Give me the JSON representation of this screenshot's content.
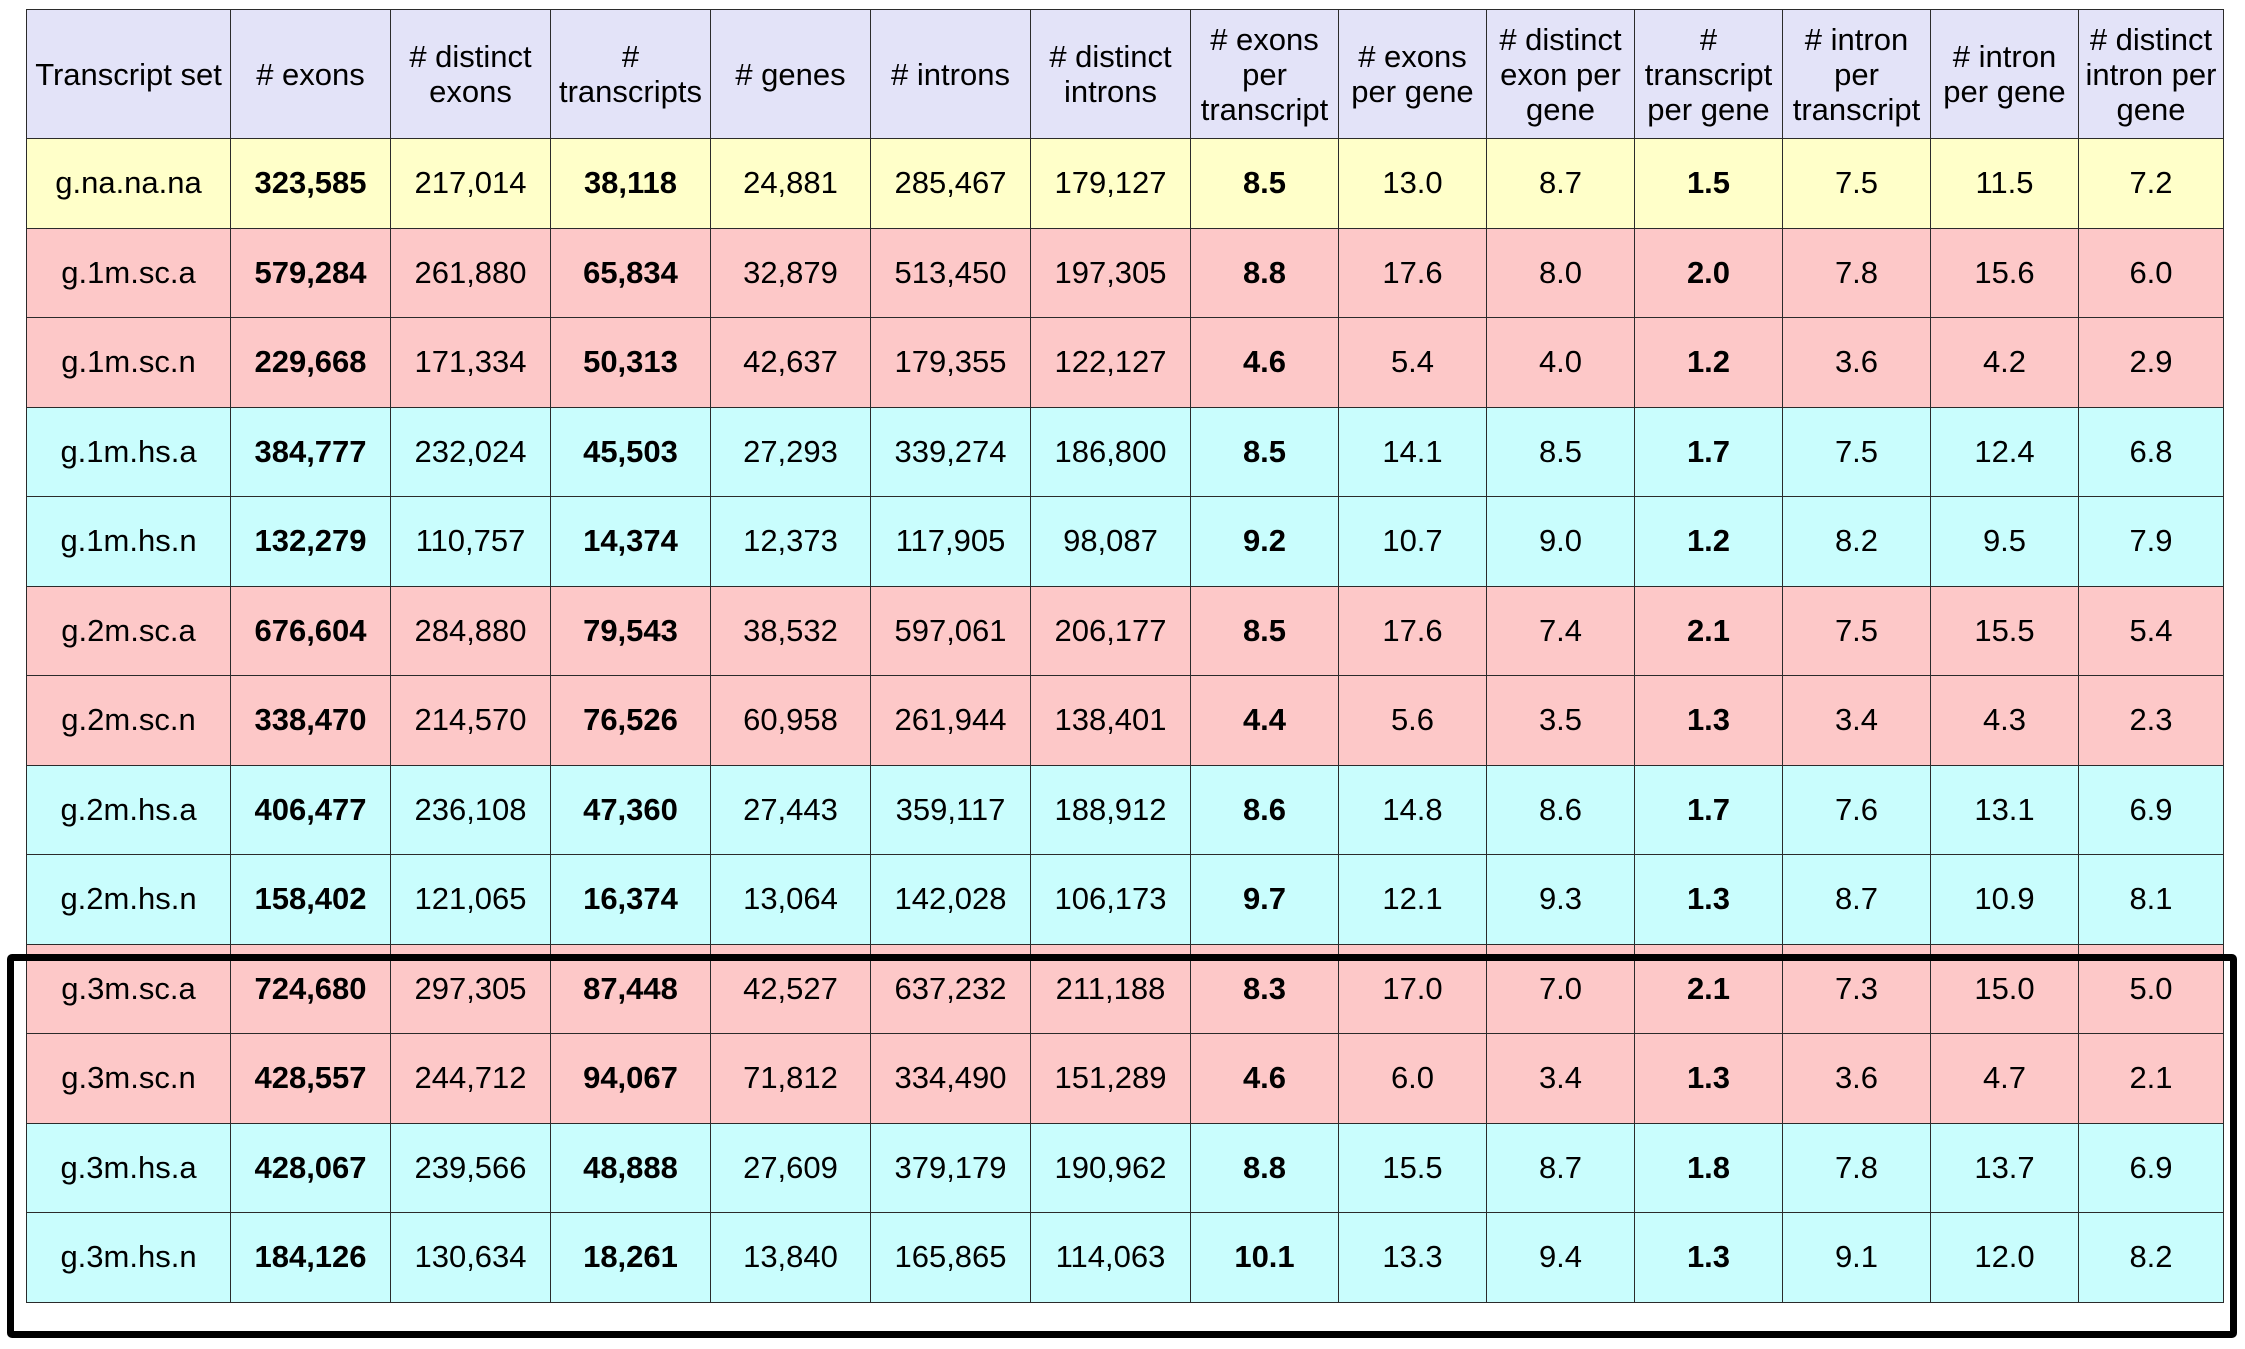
{
  "chart_data": {
    "type": "table",
    "headers": [
      "Transcript set",
      "# exons",
      "# distinct exons",
      "# transcripts",
      "# genes",
      "# introns",
      "# distinct introns",
      "# exons per transcript",
      "# exons per gene",
      "# distinct exon per gene",
      "# transcript per gene",
      "# intron per transcript",
      "# intron per gene",
      "# distinct intron per gene"
    ],
    "bold_columns": [
      1,
      3,
      7,
      10
    ],
    "highlighted_rows": [
      9,
      10,
      11,
      12
    ],
    "rows": [
      {
        "color": "yellow",
        "cells": [
          "g.na.na.na",
          "323,585",
          "217,014",
          "38,118",
          "24,881",
          "285,467",
          "179,127",
          "8.5",
          "13.0",
          "8.7",
          "1.5",
          "7.5",
          "11.5",
          "7.2"
        ]
      },
      {
        "color": "pink",
        "cells": [
          "g.1m.sc.a",
          "579,284",
          "261,880",
          "65,834",
          "32,879",
          "513,450",
          "197,305",
          "8.8",
          "17.6",
          "8.0",
          "2.0",
          "7.8",
          "15.6",
          "6.0"
        ]
      },
      {
        "color": "pink",
        "cells": [
          "g.1m.sc.n",
          "229,668",
          "171,334",
          "50,313",
          "42,637",
          "179,355",
          "122,127",
          "4.6",
          "5.4",
          "4.0",
          "1.2",
          "3.6",
          "4.2",
          "2.9"
        ]
      },
      {
        "color": "cyan",
        "cells": [
          "g.1m.hs.a",
          "384,777",
          "232,024",
          "45,503",
          "27,293",
          "339,274",
          "186,800",
          "8.5",
          "14.1",
          "8.5",
          "1.7",
          "7.5",
          "12.4",
          "6.8"
        ]
      },
      {
        "color": "cyan",
        "cells": [
          "g.1m.hs.n",
          "132,279",
          "110,757",
          "14,374",
          "12,373",
          "117,905",
          "98,087",
          "9.2",
          "10.7",
          "9.0",
          "1.2",
          "8.2",
          "9.5",
          "7.9"
        ]
      },
      {
        "color": "pink",
        "cells": [
          "g.2m.sc.a",
          "676,604",
          "284,880",
          "79,543",
          "38,532",
          "597,061",
          "206,177",
          "8.5",
          "17.6",
          "7.4",
          "2.1",
          "7.5",
          "15.5",
          "5.4"
        ]
      },
      {
        "color": "pink",
        "cells": [
          "g.2m.sc.n",
          "338,470",
          "214,570",
          "76,526",
          "60,958",
          "261,944",
          "138,401",
          "4.4",
          "5.6",
          "3.5",
          "1.3",
          "3.4",
          "4.3",
          "2.3"
        ]
      },
      {
        "color": "cyan",
        "cells": [
          "g.2m.hs.a",
          "406,477",
          "236,108",
          "47,360",
          "27,443",
          "359,117",
          "188,912",
          "8.6",
          "14.8",
          "8.6",
          "1.7",
          "7.6",
          "13.1",
          "6.9"
        ]
      },
      {
        "color": "cyan",
        "cells": [
          "g.2m.hs.n",
          "158,402",
          "121,065",
          "16,374",
          "13,064",
          "142,028",
          "106,173",
          "9.7",
          "12.1",
          "9.3",
          "1.3",
          "8.7",
          "10.9",
          "8.1"
        ]
      },
      {
        "color": "pink",
        "cells": [
          "g.3m.sc.a",
          "724,680",
          "297,305",
          "87,448",
          "42,527",
          "637,232",
          "211,188",
          "8.3",
          "17.0",
          "7.0",
          "2.1",
          "7.3",
          "15.0",
          "5.0"
        ]
      },
      {
        "color": "pink",
        "cells": [
          "g.3m.sc.n",
          "428,557",
          "244,712",
          "94,067",
          "71,812",
          "334,490",
          "151,289",
          "4.6",
          "6.0",
          "3.4",
          "1.3",
          "3.6",
          "4.7",
          "2.1"
        ]
      },
      {
        "color": "cyan",
        "cells": [
          "g.3m.hs.a",
          "428,067",
          "239,566",
          "48,888",
          "27,609",
          "379,179",
          "190,962",
          "8.8",
          "15.5",
          "8.7",
          "1.8",
          "7.8",
          "13.7",
          "6.9"
        ]
      },
      {
        "color": "cyan",
        "cells": [
          "g.3m.hs.n",
          "184,126",
          "130,634",
          "18,261",
          "13,840",
          "165,865",
          "114,063",
          "10.1",
          "13.3",
          "9.4",
          "1.3",
          "9.1",
          "12.0",
          "8.2"
        ]
      }
    ],
    "colors": {
      "header": "#e3e3f8",
      "yellow": "#ffffc9",
      "pink": "#fdc8c8",
      "cyan": "#c9fdfd",
      "border": "#2b2b2b",
      "highlight": "#000000"
    }
  }
}
